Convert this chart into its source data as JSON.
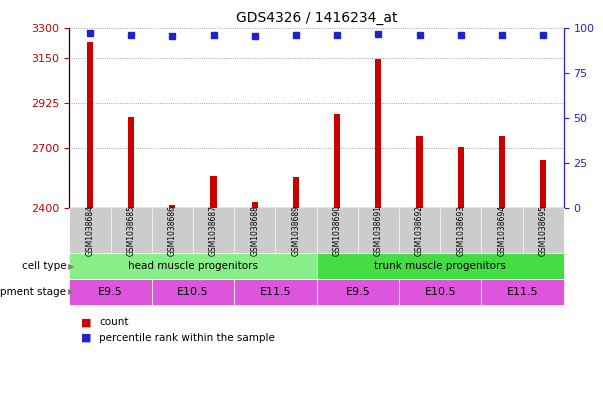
{
  "title": "GDS4326 / 1416234_at",
  "samples": [
    "GSM1038684",
    "GSM1038685",
    "GSM1038686",
    "GSM1038687",
    "GSM1038688",
    "GSM1038689",
    "GSM1038690",
    "GSM1038691",
    "GSM1038692",
    "GSM1038693",
    "GSM1038694",
    "GSM1038695"
  ],
  "counts": [
    3230,
    2855,
    2415,
    2560,
    2430,
    2555,
    2870,
    3145,
    2760,
    2705,
    2760,
    2640
  ],
  "percentile_y": [
    3275,
    3265,
    3260,
    3265,
    3260,
    3265,
    3265,
    3270,
    3265,
    3265,
    3265,
    3265
  ],
  "ylim_left": [
    2400,
    3300
  ],
  "yticks_left": [
    2400,
    2700,
    2925,
    3150,
    3300
  ],
  "yticks_right": [
    0,
    25,
    50,
    75,
    100
  ],
  "ylim_right": [
    0,
    100
  ],
  "bar_color": "#cc0000",
  "dot_color": "#2222cc",
  "cell_type_groups": [
    {
      "label": "head muscle progenitors",
      "start": 0,
      "end": 5,
      "color": "#88ee88"
    },
    {
      "label": "trunk muscle progenitors",
      "start": 6,
      "end": 11,
      "color": "#44dd44"
    }
  ],
  "dev_stage_groups": [
    {
      "label": "E9.5",
      "start": 0,
      "end": 1,
      "color": "#dd55dd"
    },
    {
      "label": "E10.5",
      "start": 2,
      "end": 3,
      "color": "#dd55dd"
    },
    {
      "label": "E11.5",
      "start": 4,
      "end": 5,
      "color": "#dd55dd"
    },
    {
      "label": "E9.5",
      "start": 6,
      "end": 7,
      "color": "#dd55dd"
    },
    {
      "label": "E10.5",
      "start": 8,
      "end": 9,
      "color": "#dd55dd"
    },
    {
      "label": "E11.5",
      "start": 10,
      "end": 11,
      "color": "#dd55dd"
    }
  ],
  "sample_bg_color": "#cccccc",
  "bg_color": "#ffffff",
  "tick_label_color_left": "#cc0000",
  "tick_label_color_right": "#2222cc",
  "grid_color": "#888888",
  "bar_width": 0.15,
  "row_label_cell_type": "cell type",
  "row_label_dev_stage": "development stage",
  "legend_count_label": "count",
  "legend_percentile_label": "percentile rank within the sample",
  "legend_count_color": "#cc0000",
  "legend_dot_color": "#2222cc"
}
